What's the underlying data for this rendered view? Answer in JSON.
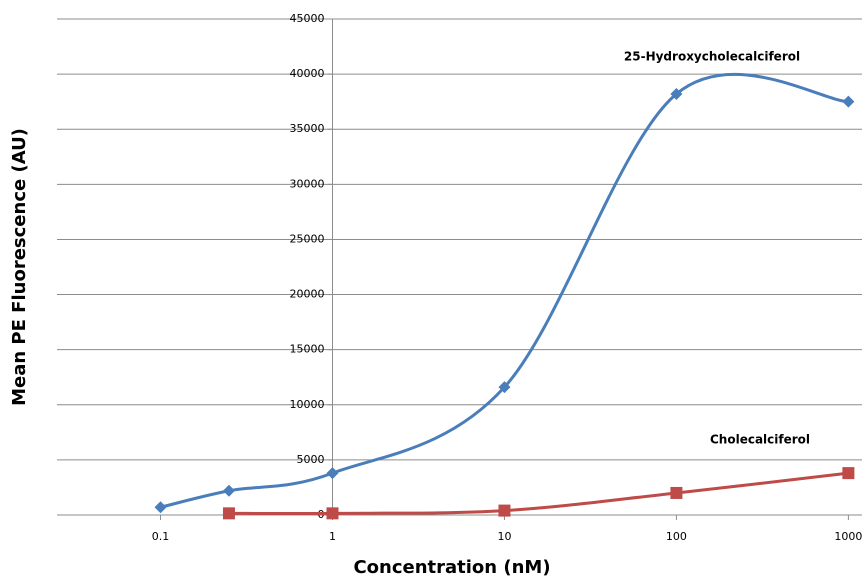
{
  "chart_data": {
    "type": "line",
    "x_label": "Concentration (nM)",
    "y_label": "Mean PE Fluorescence (AU)",
    "xscale": "log",
    "xlim": [
      0.025,
      1200
    ],
    "xticks": [
      0.1,
      1,
      10,
      100,
      1000
    ],
    "ylim": [
      0,
      45000
    ],
    "yticks": [
      0,
      5000,
      10000,
      15000,
      20000,
      25000,
      30000,
      35000,
      40000,
      45000
    ],
    "y_axis_at_x": 1,
    "grid": true,
    "smooth": true,
    "series": [
      {
        "name": "25-Hydroxycholecalciferol",
        "color": "#4a7ebb",
        "marker": "diamond",
        "x": [
          0.1,
          0.25,
          1,
          10,
          100,
          1000
        ],
        "values": [
          700,
          2200,
          3800,
          11600,
          38200,
          37500
        ]
      },
      {
        "name": "Cholecalciferol",
        "color": "#be4b48",
        "marker": "square",
        "x": [
          0.25,
          1,
          10,
          100,
          1000
        ],
        "values": [
          150,
          150,
          400,
          2000,
          3800
        ]
      }
    ]
  }
}
